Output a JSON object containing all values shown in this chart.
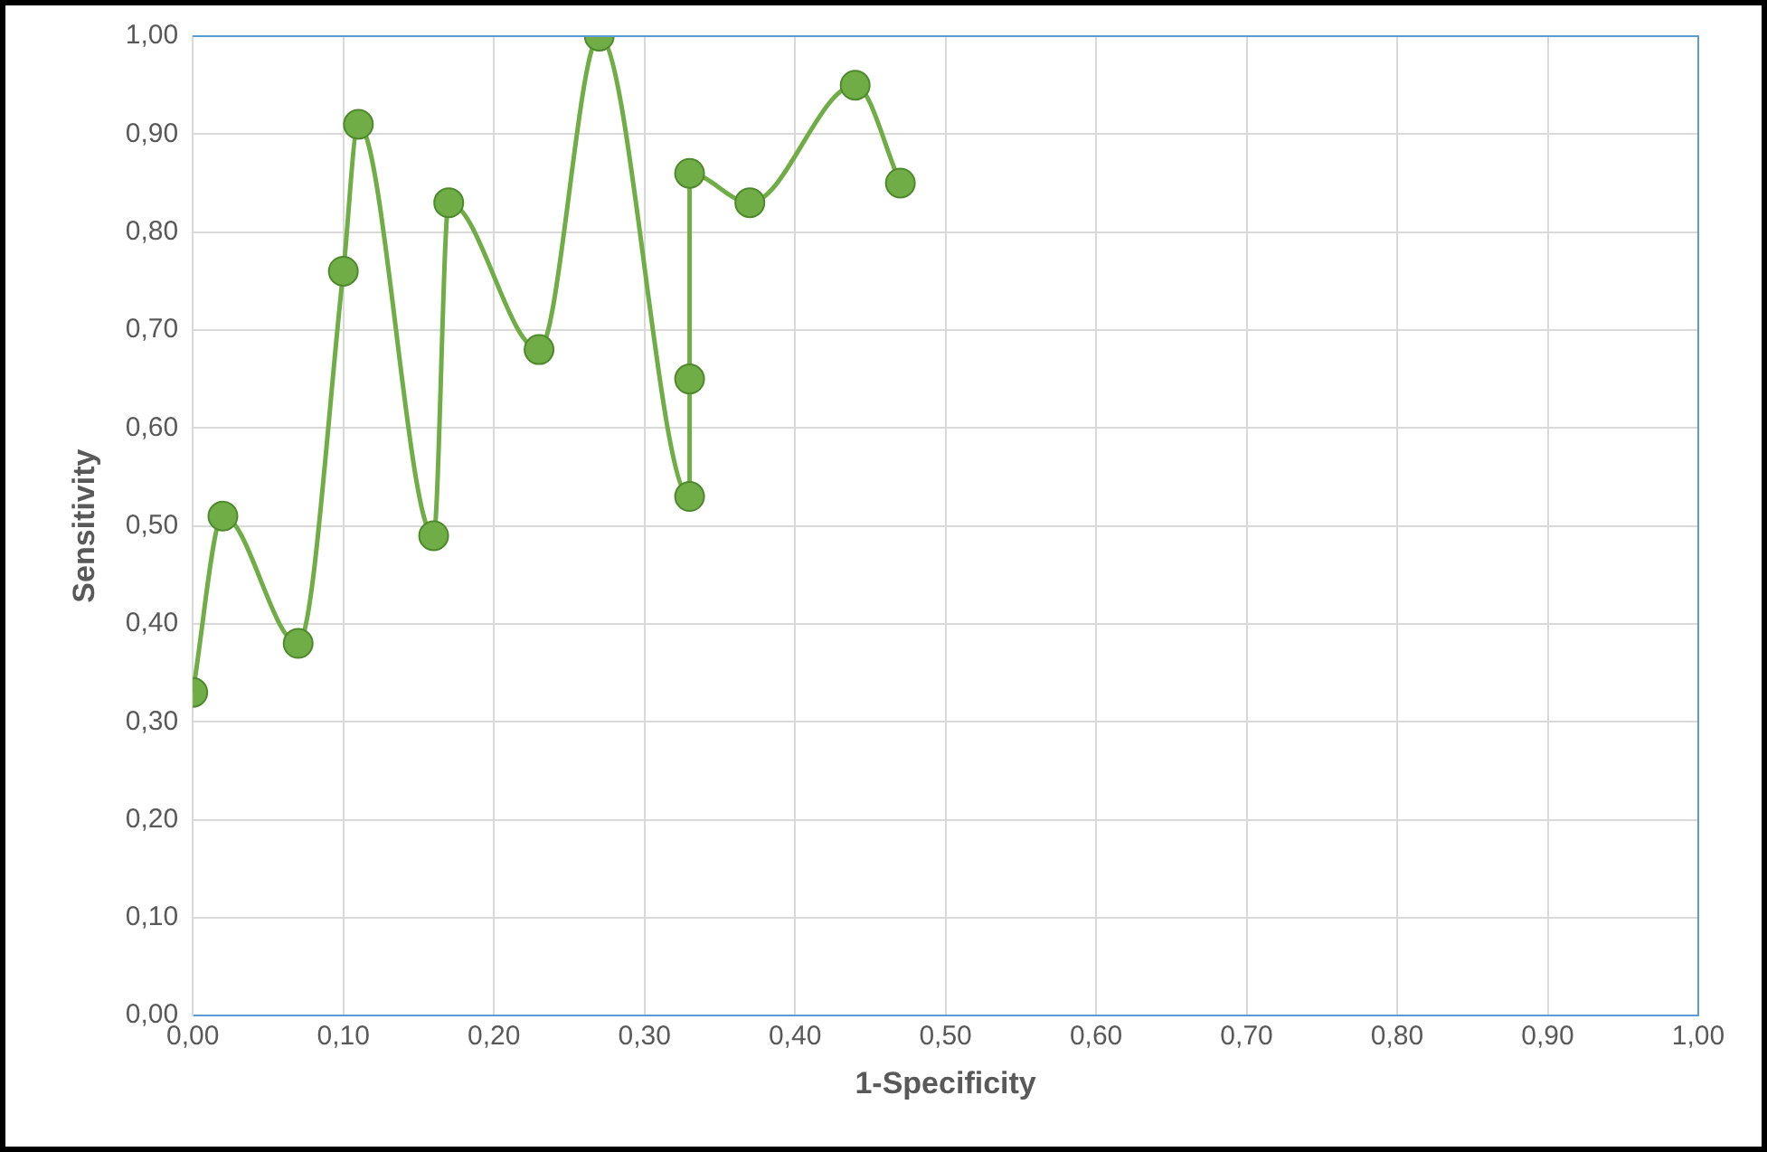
{
  "chart_data": {
    "type": "line",
    "xlabel": "1-Specificity",
    "ylabel": "Sensitivity",
    "x": [
      0.0,
      0.02,
      0.07,
      0.1,
      0.11,
      0.16,
      0.17,
      0.23,
      0.27,
      0.33,
      0.33,
      0.33,
      0.37,
      0.44,
      0.47
    ],
    "series": [
      {
        "color": "#70ad47",
        "values": [
          0.33,
          0.51,
          0.38,
          0.76,
          0.91,
          0.49,
          0.83,
          0.68,
          1.0,
          0.53,
          0.65,
          0.86,
          0.83,
          0.95,
          0.85
        ]
      }
    ],
    "xlim": [
      0,
      1
    ],
    "ylim": [
      0,
      1
    ],
    "xticks": [
      {
        "value": 0,
        "label": "0,00"
      },
      {
        "value": 0.1,
        "label": "0,10"
      },
      {
        "value": 0.2,
        "label": "0,20"
      },
      {
        "value": 0.3,
        "label": "0,30"
      },
      {
        "value": 0.4,
        "label": "0,40"
      },
      {
        "value": 0.5,
        "label": "0,50"
      },
      {
        "value": 0.6,
        "label": "0,60"
      },
      {
        "value": 0.7,
        "label": "0,70"
      },
      {
        "value": 0.8,
        "label": "0,80"
      },
      {
        "value": 0.9,
        "label": "0,90"
      },
      {
        "value": 1,
        "label": "1,00"
      }
    ],
    "yticks": [
      {
        "value": 0,
        "label": "0,00"
      },
      {
        "value": 0.1,
        "label": "0,10"
      },
      {
        "value": 0.2,
        "label": "0,20"
      },
      {
        "value": 0.3,
        "label": "0,30"
      },
      {
        "value": 0.4,
        "label": "0,40"
      },
      {
        "value": 0.5,
        "label": "0,50"
      },
      {
        "value": 0.6,
        "label": "0,60"
      },
      {
        "value": 0.7,
        "label": "0,70"
      },
      {
        "value": 0.8,
        "label": "0,80"
      },
      {
        "value": 0.9,
        "label": "0,90"
      },
      {
        "value": 1,
        "label": "1,00"
      }
    ],
    "grid": true,
    "legend": false,
    "marker": "circle",
    "line_style": "solid"
  }
}
